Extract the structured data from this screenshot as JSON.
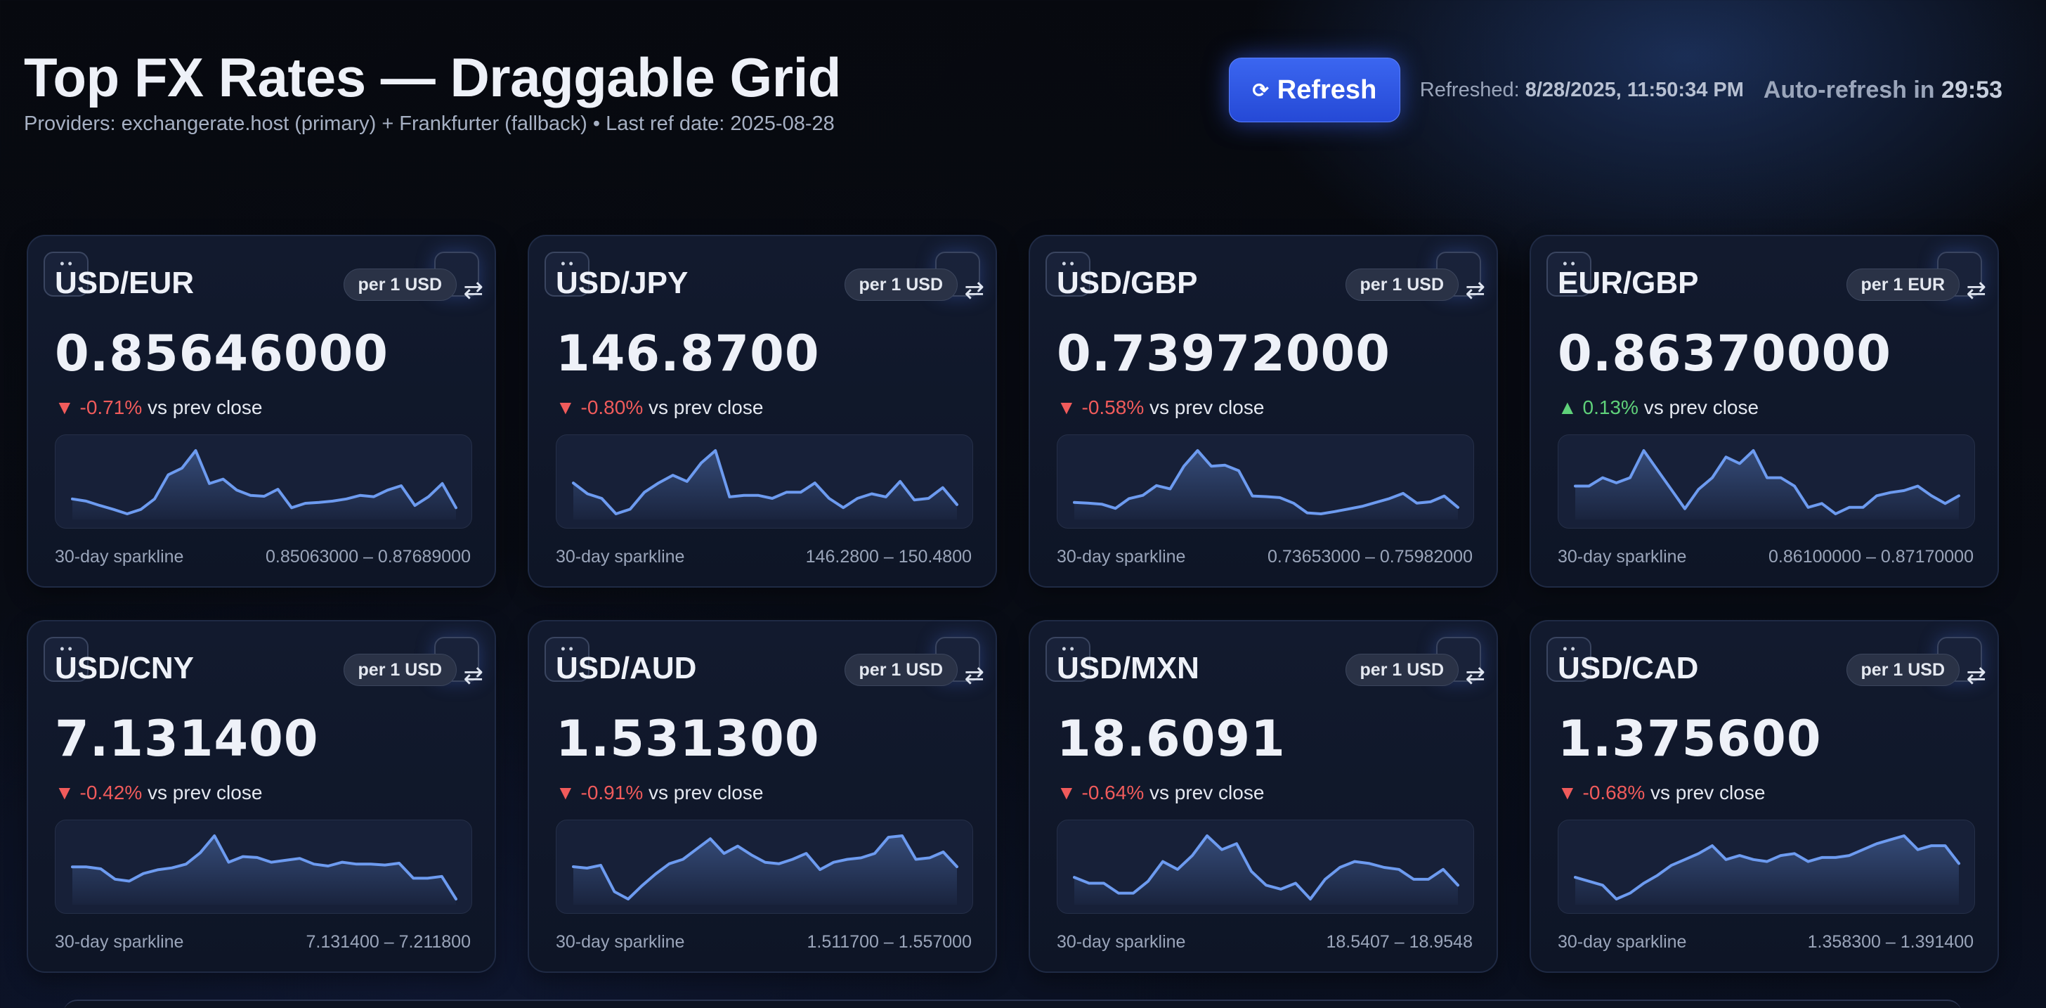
{
  "header": {
    "title": "Top FX Rates — Draggable Grid",
    "subtitle": "Providers: exchangerate.host (primary) + Frankfurter (fallback) • Last ref date: 2025-08-28"
  },
  "controls": {
    "refresh_label": "Refresh",
    "refresh_icon": "⟳",
    "refreshed_label": "Refreshed:",
    "refreshed_value": "8/28/2025, 11:50:34 PM",
    "auto_label": "Auto-refresh in",
    "auto_value": "29:53"
  },
  "colors": {
    "accent": "#2f56e6",
    "down": "#f05b5b",
    "up": "#5fd17a",
    "spark": "#6d9bf0"
  },
  "cards": [
    {
      "pair": "USD/EUR",
      "unit": "per 1 USD",
      "rate": "0.85646000",
      "arrow": "▼",
      "direction": "down",
      "change": "-0.71%",
      "vs": "vs prev close",
      "spark_label": "30-day sparkline",
      "range": "0.85063000 – 0.87689000",
      "spark": [
        0.859,
        0.8585,
        0.8575,
        0.8566,
        0.8556,
        0.8566,
        0.859,
        0.8645,
        0.866,
        0.87,
        0.8625,
        0.8635,
        0.861,
        0.8598,
        0.8596,
        0.8612,
        0.857,
        0.858,
        0.8582,
        0.8585,
        0.859,
        0.8598,
        0.8595,
        0.861,
        0.862,
        0.8575,
        0.8595,
        0.8625,
        0.857
      ]
    },
    {
      "pair": "USD/JPY",
      "unit": "per 1 USD",
      "rate": "146.8700",
      "arrow": "▼",
      "direction": "down",
      "change": "-0.80%",
      "vs": "vs prev close",
      "spark_label": "30-day sparkline",
      "range": "146.2800 – 150.4800",
      "spark": [
        148.3,
        147.6,
        147.3,
        146.3,
        146.6,
        147.7,
        148.3,
        148.8,
        148.4,
        149.6,
        150.4,
        147.4,
        147.5,
        147.5,
        147.3,
        147.7,
        147.7,
        148.3,
        147.3,
        146.7,
        147.3,
        147.6,
        147.4,
        148.4,
        147.2,
        147.3,
        148.0,
        146.9
      ]
    },
    {
      "pair": "USD/GBP",
      "unit": "per 1 USD",
      "rate": "0.73972000",
      "arrow": "▼",
      "direction": "down",
      "change": "-0.58%",
      "vs": "vs prev close",
      "spark_label": "30-day sparkline",
      "range": "0.73653000 – 0.75982000",
      "spark": [
        0.74,
        0.7398,
        0.7395,
        0.7382,
        0.7412,
        0.7422,
        0.7452,
        0.7442,
        0.7512,
        0.756,
        0.7512,
        0.7515,
        0.7498,
        0.742,
        0.7418,
        0.7415,
        0.7398,
        0.7368,
        0.7365,
        0.7372,
        0.738,
        0.7388,
        0.74,
        0.7412,
        0.7428,
        0.7398,
        0.7402,
        0.742,
        0.7385
      ]
    },
    {
      "pair": "EUR/GBP",
      "unit": "per 1 EUR",
      "rate": "0.86370000",
      "arrow": "▲",
      "direction": "up",
      "change": "0.13%",
      "vs": "vs prev close",
      "spark_label": "30-day sparkline",
      "range": "0.86100000 – 0.87170000",
      "spark": [
        0.8655,
        0.8655,
        0.8668,
        0.866,
        0.8668,
        0.871,
        0.868,
        0.865,
        0.862,
        0.865,
        0.8668,
        0.87,
        0.869,
        0.871,
        0.8668,
        0.8668,
        0.8655,
        0.8622,
        0.8628,
        0.8612,
        0.8622,
        0.8622,
        0.864,
        0.8645,
        0.8648,
        0.8655,
        0.864,
        0.8628,
        0.864
      ]
    },
    {
      "pair": "USD/CNY",
      "unit": "per 1 USD",
      "rate": "7.131400",
      "arrow": "▼",
      "direction": "down",
      "change": "-0.42%",
      "vs": "vs prev close",
      "spark_label": "30-day sparkline",
      "range": "7.131400 – 7.211800",
      "spark": [
        7.175,
        7.175,
        7.173,
        7.162,
        7.16,
        7.168,
        7.172,
        7.174,
        7.178,
        7.19,
        7.208,
        7.18,
        7.186,
        7.185,
        7.18,
        7.182,
        7.184,
        7.178,
        7.176,
        7.18,
        7.178,
        7.178,
        7.177,
        7.179,
        7.163,
        7.163,
        7.165,
        7.141
      ]
    },
    {
      "pair": "USD/AUD",
      "unit": "per 1 USD",
      "rate": "1.531300",
      "arrow": "▼",
      "direction": "down",
      "change": "-0.91%",
      "vs": "vs prev close",
      "spark_label": "30-day sparkline",
      "range": "1.511700 – 1.557000",
      "spark": [
        1.535,
        1.534,
        1.536,
        1.518,
        1.513,
        1.522,
        1.53,
        1.537,
        1.54,
        1.547,
        1.554,
        1.544,
        1.549,
        1.543,
        1.538,
        1.537,
        1.54,
        1.544,
        1.533,
        1.538,
        1.54,
        1.541,
        1.544,
        1.555,
        1.556,
        1.54,
        1.541,
        1.545,
        1.535
      ]
    },
    {
      "pair": "USD/MXN",
      "unit": "per 1 USD",
      "rate": "18.6091",
      "arrow": "▼",
      "direction": "down",
      "change": "-0.64%",
      "vs": "vs prev close",
      "spark_label": "30-day sparkline",
      "range": "18.5407 – 18.9548",
      "spark": [
        18.74,
        18.71,
        18.71,
        18.66,
        18.66,
        18.72,
        18.82,
        18.78,
        18.85,
        18.95,
        18.88,
        18.91,
        18.77,
        18.7,
        18.68,
        18.71,
        18.63,
        18.73,
        18.79,
        18.82,
        18.81,
        18.79,
        18.78,
        18.73,
        18.73,
        18.78,
        18.7
      ]
    },
    {
      "pair": "USD/CAD",
      "unit": "per 1 USD",
      "rate": "1.375600",
      "arrow": "▼",
      "direction": "down",
      "change": "-0.68%",
      "vs": "vs prev close",
      "spark_label": "30-day sparkline",
      "range": "1.358300 – 1.391400",
      "spark": [
        1.37,
        1.368,
        1.366,
        1.359,
        1.362,
        1.367,
        1.371,
        1.376,
        1.379,
        1.382,
        1.386,
        1.379,
        1.381,
        1.379,
        1.378,
        1.381,
        1.382,
        1.378,
        1.38,
        1.38,
        1.381,
        1.384,
        1.387,
        1.389,
        1.391,
        1.384,
        1.386,
        1.386,
        1.377
      ]
    }
  ]
}
